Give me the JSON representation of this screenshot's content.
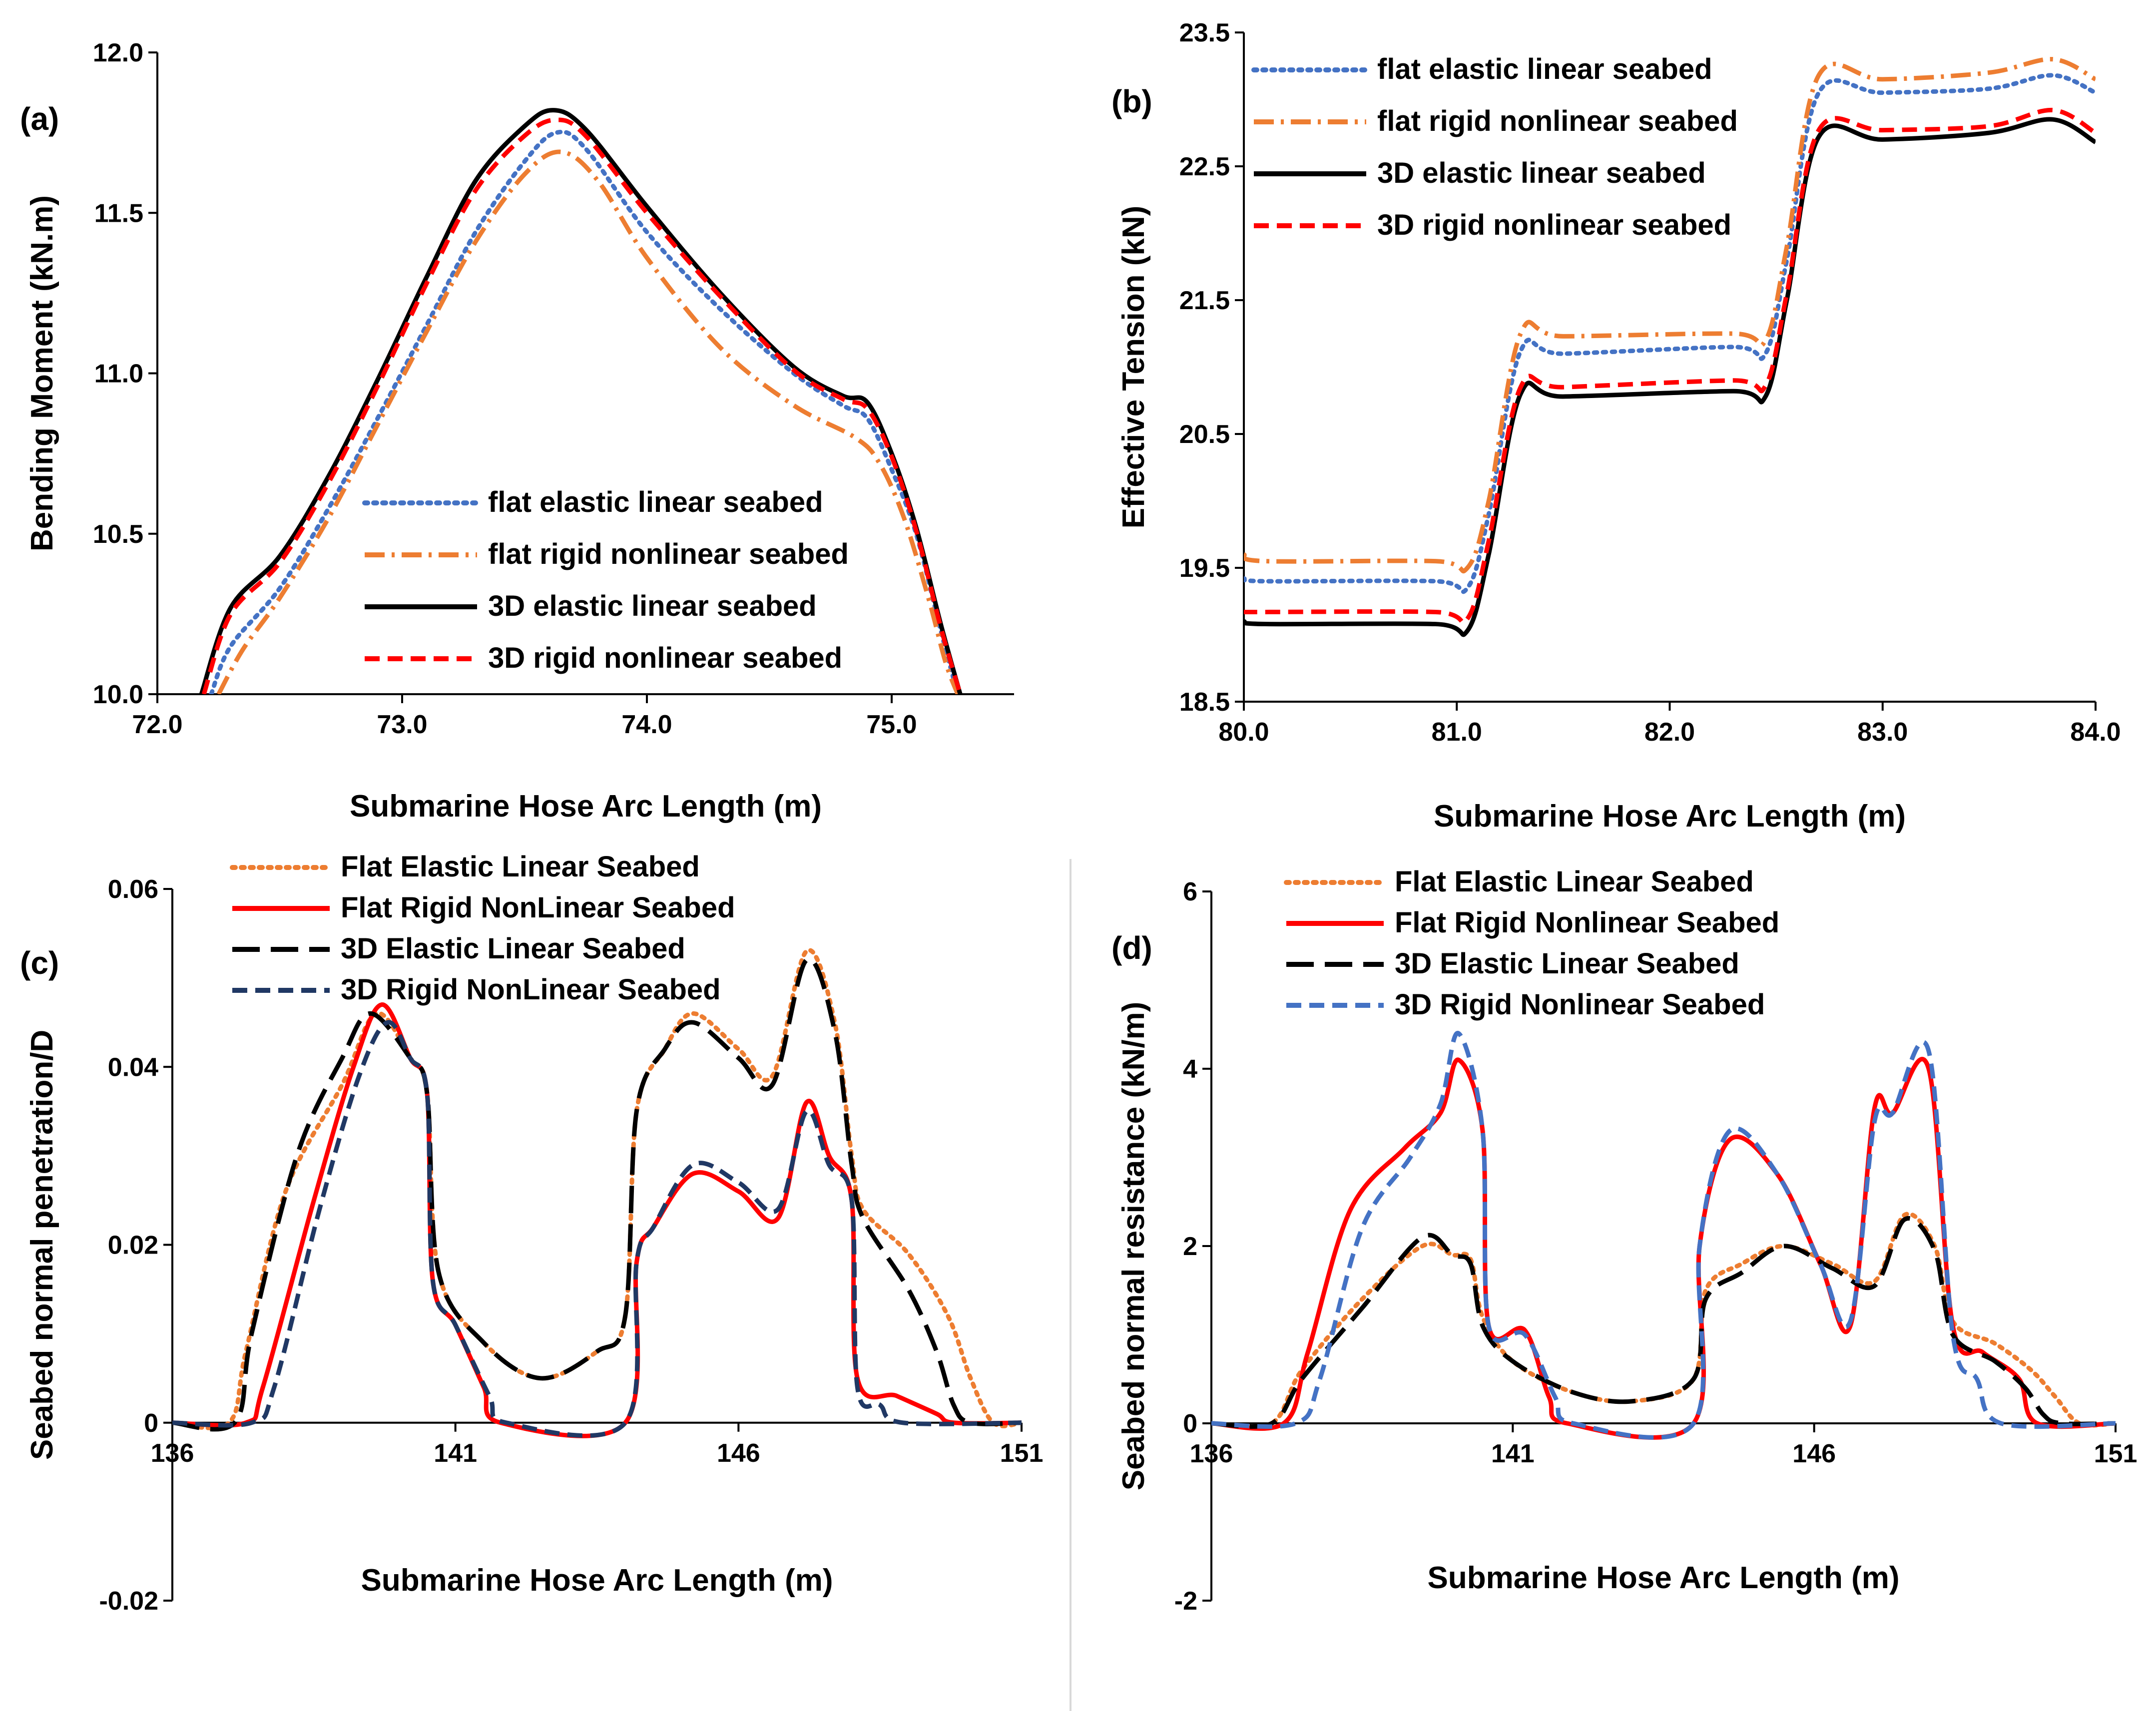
{
  "colors": {
    "blue_dotted": "#4472C4",
    "orange": "#ED7D31",
    "black": "#000000",
    "red": "#FF0000",
    "navy": "#203864",
    "divider": "#D9D9D9"
  },
  "chart_data": [
    {
      "id": "a",
      "type": "line",
      "panel_label": "(a)",
      "xlabel": "Submarine Hose Arc Length (m)",
      "ylabel": "Bending Moment (kN.m)",
      "xlim": [
        72.0,
        75.5
      ],
      "ylim": [
        10.0,
        12.0
      ],
      "xticks": [
        "72.0",
        "73.0",
        "74.0",
        "75.0"
      ],
      "yticks": [
        "10.0",
        "10.5",
        "11.0",
        "11.5",
        "12.0"
      ],
      "legend_position": "bottom-center",
      "series": [
        {
          "name": "flat elastic linear seabed",
          "color": "#4472C4",
          "dash": "dotted",
          "x": [
            72.22,
            72.3,
            72.5,
            72.7,
            72.9,
            73.1,
            73.3,
            73.5,
            73.63,
            73.75,
            74.0,
            74.3,
            74.6,
            74.8,
            74.9,
            75.0,
            75.1,
            75.2,
            75.27
          ],
          "y": [
            10.0,
            10.15,
            10.33,
            10.58,
            10.86,
            11.15,
            11.44,
            11.66,
            11.75,
            11.7,
            11.44,
            11.2,
            11.0,
            10.9,
            10.86,
            10.7,
            10.5,
            10.2,
            10.0
          ]
        },
        {
          "name": "flat rigid nonlinear seabed",
          "color": "#ED7D31",
          "dash": "dashdot",
          "x": [
            72.25,
            72.35,
            72.5,
            72.7,
            72.9,
            73.1,
            73.3,
            73.5,
            73.65,
            73.8,
            74.0,
            74.3,
            74.6,
            74.85,
            74.95,
            75.05,
            75.15,
            75.22,
            75.27
          ],
          "y": [
            10.0,
            10.14,
            10.3,
            10.55,
            10.84,
            11.13,
            11.41,
            11.62,
            11.69,
            11.6,
            11.36,
            11.08,
            10.9,
            10.8,
            10.72,
            10.55,
            10.3,
            10.1,
            10.0
          ]
        },
        {
          "name": "3D elastic linear seabed",
          "color": "#000000",
          "dash": "solid",
          "x": [
            72.18,
            72.3,
            72.5,
            72.7,
            72.9,
            73.1,
            73.3,
            73.5,
            73.62,
            73.75,
            74.0,
            74.3,
            74.6,
            74.8,
            74.9,
            75.0,
            75.1,
            75.2,
            75.28
          ],
          "y": [
            10.0,
            10.27,
            10.43,
            10.68,
            10.98,
            11.3,
            11.6,
            11.77,
            11.82,
            11.76,
            11.52,
            11.25,
            11.02,
            10.93,
            10.91,
            10.75,
            10.52,
            10.22,
            10.0
          ]
        },
        {
          "name": "3D rigid nonlinear seabed",
          "color": "#FF0000",
          "dash": "dashed",
          "x": [
            72.19,
            72.3,
            72.5,
            72.7,
            72.9,
            73.1,
            73.3,
            73.5,
            73.63,
            73.75,
            74.0,
            74.3,
            74.6,
            74.8,
            74.9,
            75.0,
            75.1,
            75.2,
            75.28
          ],
          "y": [
            10.0,
            10.25,
            10.41,
            10.66,
            10.96,
            11.28,
            11.57,
            11.74,
            11.79,
            11.74,
            11.5,
            11.24,
            11.01,
            10.92,
            10.89,
            10.74,
            10.51,
            10.21,
            10.0
          ]
        }
      ]
    },
    {
      "id": "b",
      "type": "line",
      "panel_label": "(b)",
      "xlabel": "Submarine Hose Arc Length (m)",
      "ylabel": "Effective Tension (kN)",
      "xlim": [
        80.0,
        84.0
      ],
      "ylim": [
        18.5,
        23.5
      ],
      "xticks": [
        "80.0",
        "81.0",
        "82.0",
        "83.0",
        "84.0"
      ],
      "yticks": [
        "18.5",
        "19.5",
        "20.5",
        "21.5",
        "22.5",
        "23.5"
      ],
      "legend_position": "top-left",
      "series": [
        {
          "name": "flat elastic linear seabed",
          "color": "#4472C4",
          "dash": "dotted",
          "x": [
            80.0,
            80.1,
            80.9,
            81.05,
            81.15,
            81.3,
            81.5,
            82.3,
            82.45,
            82.55,
            82.7,
            83.0,
            83.5,
            83.8,
            84.0
          ],
          "y": [
            19.42,
            19.4,
            19.4,
            19.35,
            19.9,
            21.12,
            21.1,
            21.15,
            21.1,
            21.8,
            23.05,
            23.05,
            23.08,
            23.18,
            23.05
          ]
        },
        {
          "name": "flat rigid nonlinear seabed",
          "color": "#ED7D31",
          "dash": "dashdot",
          "x": [
            80.0,
            80.1,
            80.9,
            81.05,
            81.15,
            81.3,
            81.5,
            82.3,
            82.45,
            82.55,
            82.7,
            83.0,
            83.5,
            83.8,
            84.0
          ],
          "y": [
            19.6,
            19.55,
            19.55,
            19.5,
            20.0,
            21.25,
            21.23,
            21.25,
            21.2,
            21.9,
            23.18,
            23.15,
            23.2,
            23.3,
            23.15
          ]
        },
        {
          "name": "3D elastic linear seabed",
          "color": "#000000",
          "dash": "solid",
          "x": [
            80.0,
            80.1,
            80.9,
            81.05,
            81.15,
            81.3,
            81.5,
            82.3,
            82.45,
            82.55,
            82.7,
            83.0,
            83.5,
            83.8,
            84.0
          ],
          "y": [
            19.1,
            19.08,
            19.08,
            19.03,
            19.6,
            20.8,
            20.78,
            20.82,
            20.78,
            21.5,
            22.72,
            22.7,
            22.75,
            22.85,
            22.68
          ]
        },
        {
          "name": "3D rigid nonlinear seabed",
          "color": "#FF0000",
          "dash": "dashed",
          "x": [
            80.0,
            80.1,
            80.9,
            81.05,
            81.15,
            81.3,
            81.5,
            82.3,
            82.45,
            82.55,
            82.7,
            83.0,
            83.5,
            83.8,
            84.0
          ],
          "y": [
            19.17,
            19.17,
            19.17,
            19.12,
            19.7,
            20.85,
            20.85,
            20.9,
            20.86,
            21.55,
            22.77,
            22.77,
            22.8,
            22.92,
            22.75
          ]
        }
      ]
    },
    {
      "id": "c",
      "type": "line",
      "panel_label": "(c)",
      "xlabel": "Submarine Hose Arc Length (m)",
      "ylabel": "Seabed normal penetration/D",
      "xlim": [
        136,
        151
      ],
      "ylim": [
        -0.02,
        0.06
      ],
      "xticks": [
        "136",
        "141",
        "146",
        "151"
      ],
      "yticks": [
        "-0.02",
        "0",
        "0.02",
        "0.04",
        "0.06"
      ],
      "legend_position": "top-left",
      "series": [
        {
          "name": "Flat Elastic Linear Seabed",
          "color": "#ED7D31",
          "dash": "dotted",
          "x": [
            136,
            137.0,
            137.3,
            138.0,
            139.0,
            139.6,
            140.2,
            140.5,
            140.7,
            141.5,
            142.5,
            143.5,
            144.0,
            144.2,
            144.7,
            145.2,
            146.0,
            146.6,
            147.2,
            147.7,
            148.0,
            148.2,
            149.0,
            149.7,
            150.1,
            150.5,
            151
          ],
          "y": [
            0,
            0,
            0.008,
            0.026,
            0.038,
            0.046,
            0.041,
            0.037,
            0.017,
            0.009,
            0.005,
            0.008,
            0.012,
            0.035,
            0.042,
            0.046,
            0.042,
            0.039,
            0.053,
            0.045,
            0.03,
            0.024,
            0.019,
            0.012,
            0.005,
            0,
            0
          ]
        },
        {
          "name": "Flat Rigid NonLinear Seabed",
          "color": "#FF0000",
          "dash": "solid",
          "x": [
            136,
            137.3,
            137.6,
            138.5,
            139.2,
            139.7,
            140.2,
            140.5,
            140.6,
            141.0,
            141.5,
            141.8,
            144.0,
            144.2,
            144.5,
            145.2,
            146.0,
            146.7,
            147.2,
            147.6,
            148.0,
            148.1,
            148.8,
            149.5,
            149.8,
            151
          ],
          "y": [
            0,
            0,
            0.004,
            0.025,
            0.04,
            0.047,
            0.041,
            0.037,
            0.016,
            0.011,
            0.004,
            0,
            0,
            0.018,
            0.022,
            0.028,
            0.026,
            0.023,
            0.036,
            0.03,
            0.025,
            0.005,
            0.003,
            0.001,
            0,
            0
          ]
        },
        {
          "name": "3D Elastic Linear Seabed",
          "color": "#000000",
          "dash": "longdash",
          "x": [
            136,
            137.1,
            137.4,
            138.2,
            139.0,
            139.5,
            140.2,
            140.5,
            140.7,
            141.5,
            142.5,
            143.5,
            144.0,
            144.2,
            144.7,
            145.2,
            146.0,
            146.6,
            147.2,
            147.7,
            148.0,
            148.2,
            149.0,
            149.5,
            149.8,
            150.1,
            151
          ],
          "y": [
            0,
            0,
            0.01,
            0.03,
            0.041,
            0.046,
            0.041,
            0.037,
            0.017,
            0.009,
            0.005,
            0.008,
            0.012,
            0.035,
            0.042,
            0.045,
            0.041,
            0.038,
            0.052,
            0.044,
            0.029,
            0.023,
            0.015,
            0.008,
            0.002,
            0,
            0
          ]
        },
        {
          "name": "3D Rigid NonLinear Seabed",
          "color": "#203864",
          "dash": "dashed",
          "x": [
            136,
            137.4,
            137.8,
            138.6,
            139.3,
            139.8,
            140.2,
            140.5,
            140.6,
            141.0,
            141.6,
            141.9,
            144.0,
            144.2,
            144.5,
            145.2,
            146.0,
            146.7,
            147.2,
            147.6,
            148.0,
            148.1,
            148.5,
            148.9,
            151
          ],
          "y": [
            0,
            0,
            0.004,
            0.024,
            0.039,
            0.045,
            0.041,
            0.037,
            0.016,
            0.011,
            0.003,
            0,
            0,
            0.018,
            0.022,
            0.029,
            0.027,
            0.024,
            0.035,
            0.029,
            0.025,
            0.004,
            0.002,
            0,
            0
          ]
        }
      ]
    },
    {
      "id": "d",
      "type": "line",
      "panel_label": "(d)",
      "xlabel": "Submarine Hose Arc Length (m)",
      "ylabel": "Seabed normal resistance (kN/m)",
      "xlim": [
        136,
        151
      ],
      "ylim": [
        -2,
        6
      ],
      "xticks": [
        "136",
        "141",
        "146",
        "151"
      ],
      "yticks": [
        "-2",
        "0",
        "2",
        "4",
        "6"
      ],
      "legend_position": "top-left",
      "series": [
        {
          "name": "Flat Elastic Linear Seabed",
          "color": "#ED7D31",
          "dash": "dotted",
          "x": [
            136,
            137.0,
            137.5,
            138.5,
            139.5,
            140.0,
            140.3,
            140.5,
            141.0,
            142.0,
            143.0,
            144.0,
            144.2,
            144.8,
            145.5,
            146.3,
            147.0,
            147.5,
            148.0,
            148.3,
            149.0,
            149.6,
            150.0,
            150.4,
            151
          ],
          "y": [
            0,
            0,
            0.6,
            1.4,
            2.0,
            1.9,
            1.85,
            1.2,
            0.7,
            0.35,
            0.25,
            0.5,
            1.5,
            1.8,
            2.0,
            1.8,
            1.6,
            2.35,
            2.0,
            1.15,
            0.9,
            0.6,
            0.3,
            0,
            0
          ]
        },
        {
          "name": "Flat Rigid Nonlinear Seabed",
          "color": "#FF0000",
          "dash": "solid",
          "x": [
            136,
            137.2,
            137.6,
            138.3,
            139.2,
            139.8,
            140.1,
            140.5,
            140.6,
            141.2,
            141.6,
            141.9,
            144.0,
            144.1,
            144.6,
            145.4,
            146.1,
            146.6,
            147.0,
            147.3,
            147.9,
            148.3,
            148.8,
            149.4,
            149.7,
            151
          ],
          "y": [
            0,
            0,
            0.8,
            2.4,
            3.1,
            3.5,
            4.1,
            3.3,
            1.1,
            1.05,
            0.3,
            0,
            0,
            2.0,
            3.2,
            2.8,
            1.8,
            1.1,
            3.55,
            3.5,
            4.0,
            1.1,
            0.8,
            0.5,
            0,
            0
          ]
        },
        {
          "name": "3D Elastic Linear Seabed",
          "color": "#000000",
          "dash": "longdash",
          "x": [
            136,
            137.0,
            137.5,
            138.5,
            139.5,
            140.0,
            140.3,
            140.5,
            141.0,
            142.0,
            143.0,
            144.0,
            144.2,
            144.8,
            145.5,
            146.3,
            147.0,
            147.5,
            148.0,
            148.3,
            149.0,
            149.5,
            149.8,
            150.1,
            151
          ],
          "y": [
            0,
            0,
            0.5,
            1.3,
            2.1,
            1.9,
            1.8,
            1.1,
            0.7,
            0.35,
            0.25,
            0.5,
            1.4,
            1.7,
            2.0,
            1.75,
            1.55,
            2.3,
            1.95,
            1.0,
            0.7,
            0.4,
            0.1,
            0,
            0
          ]
        },
        {
          "name": "3D Rigid Nonlinear Seabed",
          "color": "#4472C4",
          "dash": "dashed",
          "x": [
            136,
            137.4,
            137.8,
            138.5,
            139.3,
            139.8,
            140.1,
            140.5,
            140.6,
            141.2,
            141.7,
            142.0,
            144.0,
            144.1,
            144.6,
            145.4,
            146.1,
            146.6,
            147.0,
            147.3,
            147.9,
            148.3,
            148.7,
            149.1,
            151
          ],
          "y": [
            0,
            0,
            0.5,
            2.2,
            3.0,
            3.6,
            4.4,
            3.3,
            1.1,
            1.0,
            0.3,
            0,
            0,
            2.0,
            3.3,
            2.8,
            1.8,
            1.15,
            3.4,
            3.5,
            4.2,
            1.0,
            0.5,
            0,
            0
          ]
        }
      ]
    }
  ]
}
